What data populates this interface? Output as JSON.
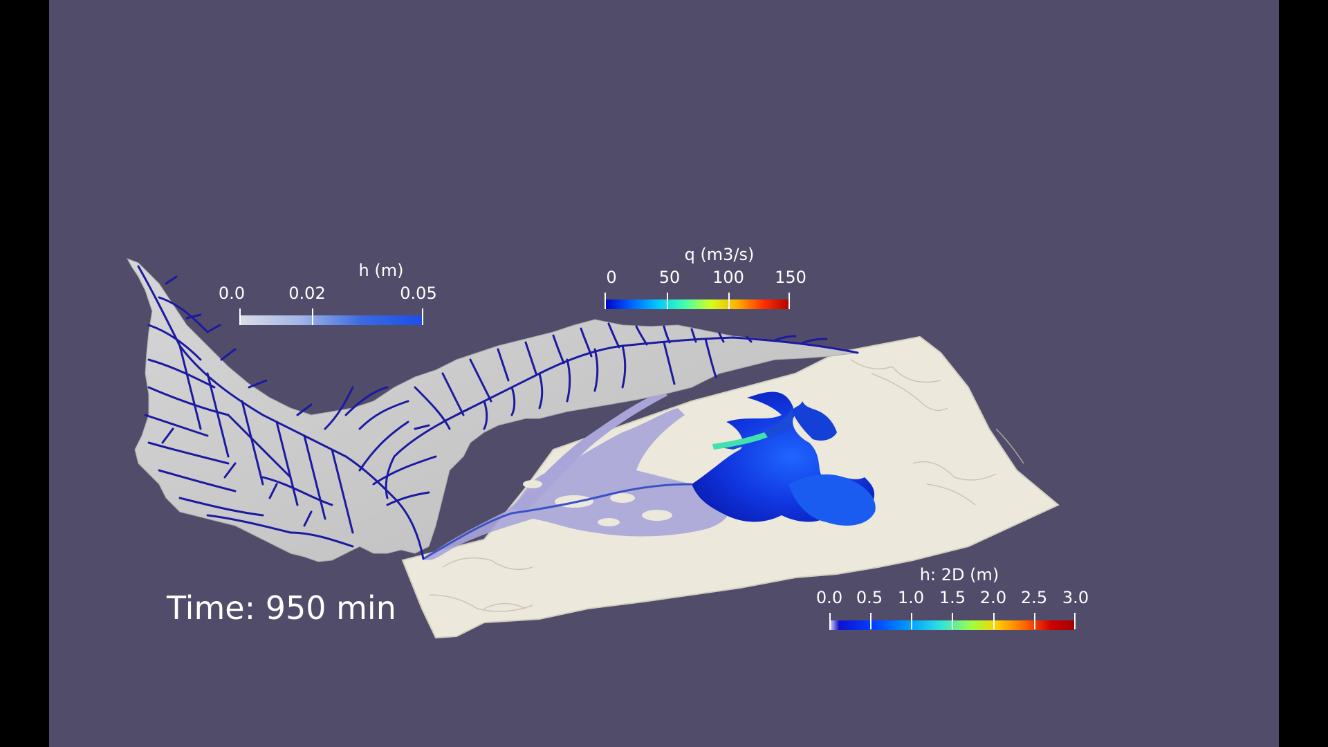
{
  "viewport": {
    "background": "#514c69",
    "letterbox": "#000000"
  },
  "legends": {
    "h": {
      "title": "h (m)",
      "ticks": [
        "0.0",
        "0.02",
        "0.05"
      ],
      "gradient": [
        "#dcdce6",
        "#a3b5e6",
        "#3a6ae0",
        "#1d4de8"
      ]
    },
    "q": {
      "title": "q (m3/s)",
      "ticks": [
        "0",
        "50",
        "100",
        "150"
      ],
      "gradient": [
        "#0000c8",
        "#0060ff",
        "#00c8ff",
        "#40ffb0",
        "#d0ff20",
        "#ffb000",
        "#ff3000",
        "#b00000"
      ]
    },
    "h2d": {
      "title": "h: 2D (m)",
      "ticks": [
        "0.0",
        "0.5",
        "1.0",
        "1.5",
        "2.0",
        "2.5",
        "3.0"
      ],
      "gradient": [
        "#e6e6f0",
        "#1010d0",
        "#0040ff",
        "#00a0ff",
        "#30e0e0",
        "#a0ff40",
        "#ffd000",
        "#ff6000",
        "#d00000",
        "#a00000"
      ]
    }
  },
  "time": {
    "label": "Time: 950 min"
  }
}
